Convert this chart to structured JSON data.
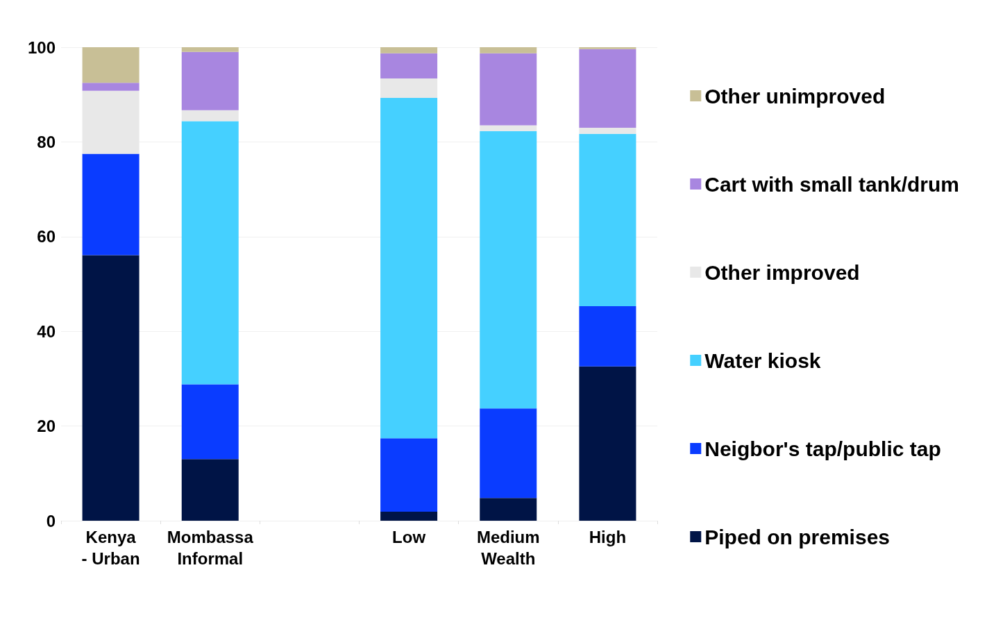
{
  "chart_data": {
    "type": "bar",
    "stacked": true,
    "categories": [
      "Kenya - Urban",
      "Mombassa Informal",
      null,
      "Low",
      "Medium Wealth",
      "High"
    ],
    "series": [
      {
        "name": "Piped on premises",
        "color": "#001446",
        "values": [
          56.1,
          13.0,
          null,
          1.9,
          4.8,
          32.6
        ]
      },
      {
        "name": "Neigbor's tap/public tap",
        "color": "#0a3cff",
        "values": [
          21.4,
          15.8,
          null,
          15.5,
          18.9,
          12.7
        ]
      },
      {
        "name": "Water kiosk",
        "color": "#45d0ff",
        "values": [
          0,
          55.6,
          null,
          71.9,
          58.6,
          36.4
        ]
      },
      {
        "name": "Other improved",
        "color": "#e8e8e8",
        "values": [
          13.3,
          2.3,
          null,
          4.1,
          1.2,
          1.3
        ]
      },
      {
        "name": "Cart with small tank/drum",
        "color": "#a886e0",
        "values": [
          1.7,
          12.3,
          null,
          5.3,
          15.2,
          16.6
        ]
      },
      {
        "name": "Other unimproved",
        "color": "#c8bf96",
        "values": [
          7.5,
          1.0,
          null,
          1.3,
          1.3,
          0.4
        ]
      }
    ],
    "ylim": [
      0,
      100
    ],
    "yticks": [
      0,
      20,
      40,
      60,
      80,
      100
    ],
    "grid": "y",
    "legend": "right"
  }
}
